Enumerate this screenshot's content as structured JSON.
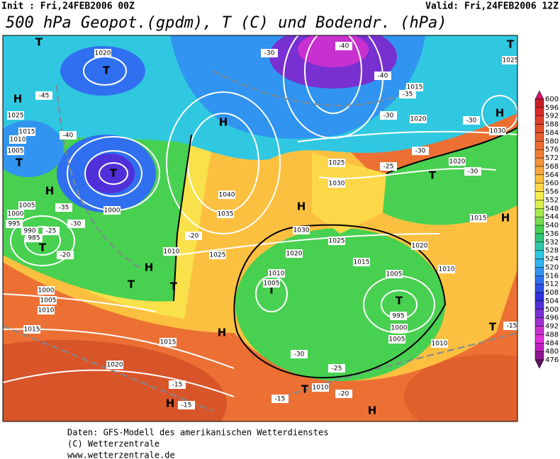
{
  "header": {
    "init": "Init : Fri,24FEB2006 00Z",
    "valid": "Valid: Fri,24FEB2006 12Z",
    "title": "500 hPa Geopot.(gpdm), T (C) und Bodendr. (hPa)"
  },
  "colorbar": {
    "levels": [
      600,
      596,
      592,
      588,
      584,
      580,
      576,
      572,
      568,
      564,
      560,
      556,
      552,
      548,
      544,
      540,
      536,
      532,
      528,
      524,
      520,
      516,
      512,
      508,
      504,
      500,
      496,
      492,
      488,
      484,
      480,
      476
    ],
    "colors": [
      "#d0186e",
      "#c81e28",
      "#d82a28",
      "#e0402c",
      "#e4502e",
      "#e86030",
      "#ec7034",
      "#f08038",
      "#f4943a",
      "#f8a83c",
      "#fcc040",
      "#fcd848",
      "#f8f050",
      "#d8f050",
      "#a8e850",
      "#78dc50",
      "#48d050",
      "#30c878",
      "#30c8b0",
      "#30c8e0",
      "#30b4f0",
      "#3094f0",
      "#3070f0",
      "#3050e8",
      "#3030e0",
      "#5030d8",
      "#7830d0",
      "#a030d0",
      "#c830d0",
      "#e030d8",
      "#c020c0",
      "#901890",
      "#601060"
    ]
  },
  "map": {
    "labels": [
      "H",
      "T",
      "T",
      "T",
      "T",
      "H",
      "H",
      "T",
      "H",
      "H",
      "T",
      "T",
      "T",
      "T",
      "H",
      "T",
      "H",
      "T",
      "H",
      "H",
      "H",
      "T",
      "T",
      "1020",
      "1025",
      "1015",
      "1010",
      "1005",
      "1000",
      "995",
      "990",
      "985",
      "1005",
      "1000",
      "1005",
      "1010",
      "1025",
      "1035",
      "1040",
      "1030",
      "1025",
      "1030",
      "1025",
      "1020",
      "1015",
      "1010",
      "1005",
      "1005",
      "995",
      "1000",
      "1005",
      "1010",
      "1010",
      "1015",
      "1020",
      "1020",
      "1030",
      "1020",
      "1015",
      "1025",
      "1015",
      "1000",
      "1005",
      "1010",
      "1015",
      "1020",
      "1010",
      "-45",
      "-40",
      "-35",
      "-30",
      "-25",
      "-20",
      "-30",
      "-40",
      "-40",
      "-35",
      "-30",
      "-30",
      "-30",
      "-25",
      "-30",
      "-20",
      "-30",
      "-25",
      "-20",
      "-15",
      "-15",
      "-15",
      "-15"
    ]
  },
  "footer": [
    "Daten: GFS-Modell des amerikanischen Wetterdienstes",
    "(C) Wetterzentrale",
    "www.wetterzentrale.de"
  ]
}
